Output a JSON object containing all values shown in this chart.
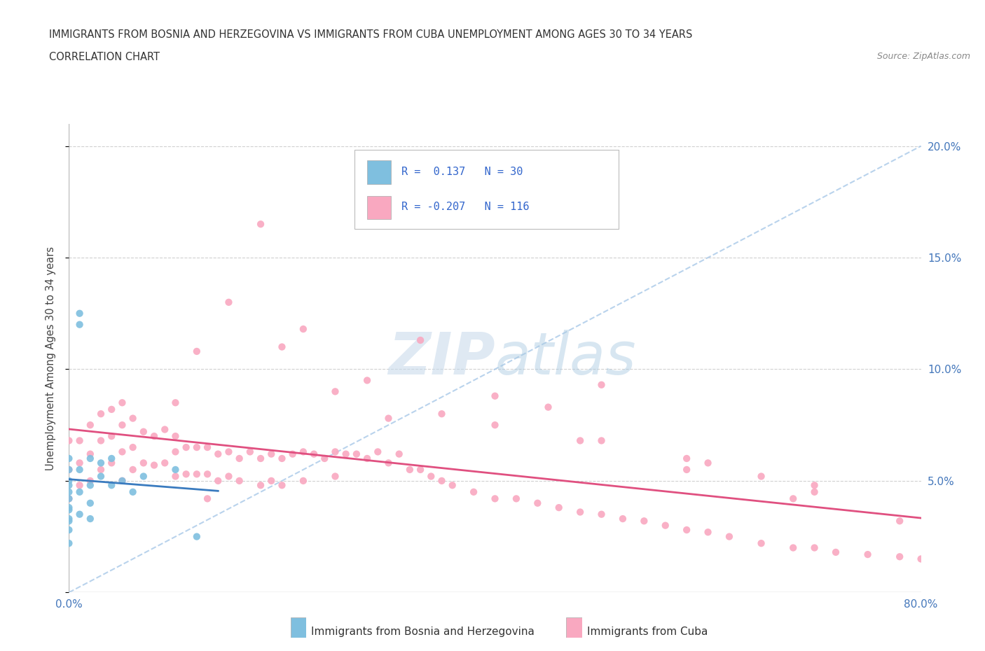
{
  "title_line1": "IMMIGRANTS FROM BOSNIA AND HERZEGOVINA VS IMMIGRANTS FROM CUBA UNEMPLOYMENT AMONG AGES 30 TO 34 YEARS",
  "title_line2": "CORRELATION CHART",
  "source_text": "Source: ZipAtlas.com",
  "ylabel": "Unemployment Among Ages 30 to 34 years",
  "xlim": [
    0.0,
    0.8
  ],
  "ylim": [
    0.0,
    0.21
  ],
  "x_ticks": [
    0.0,
    0.1,
    0.2,
    0.3,
    0.4,
    0.5,
    0.6,
    0.7,
    0.8
  ],
  "y_ticks": [
    0.0,
    0.05,
    0.1,
    0.15,
    0.2
  ],
  "y_tick_labels_right": [
    "",
    "5.0%",
    "10.0%",
    "15.0%",
    "20.0%"
  ],
  "bosnia_color": "#7fbfdf",
  "cuba_color": "#f9a8c0",
  "bosnia_line_color": "#3a7bbf",
  "cuba_line_color": "#e05080",
  "watermark_color": "#d0e4f0",
  "bosnia_x": [
    0.0,
    0.0,
    0.0,
    0.0,
    0.0,
    0.0,
    0.0,
    0.0,
    0.0,
    0.0,
    0.0,
    0.0,
    0.01,
    0.01,
    0.01,
    0.01,
    0.01,
    0.02,
    0.02,
    0.02,
    0.02,
    0.03,
    0.03,
    0.04,
    0.04,
    0.05,
    0.06,
    0.07,
    0.1,
    0.12
  ],
  "bosnia_y": [
    0.055,
    0.06,
    0.048,
    0.042,
    0.037,
    0.032,
    0.045,
    0.05,
    0.038,
    0.033,
    0.028,
    0.022,
    0.12,
    0.125,
    0.055,
    0.045,
    0.035,
    0.06,
    0.048,
    0.04,
    0.033,
    0.058,
    0.052,
    0.06,
    0.048,
    0.05,
    0.045,
    0.052,
    0.055,
    0.025
  ],
  "cuba_x": [
    0.0,
    0.0,
    0.0,
    0.01,
    0.01,
    0.01,
    0.02,
    0.02,
    0.02,
    0.03,
    0.03,
    0.03,
    0.04,
    0.04,
    0.04,
    0.05,
    0.05,
    0.05,
    0.05,
    0.06,
    0.06,
    0.06,
    0.07,
    0.07,
    0.08,
    0.08,
    0.09,
    0.09,
    0.1,
    0.1,
    0.1,
    0.11,
    0.11,
    0.12,
    0.12,
    0.13,
    0.13,
    0.13,
    0.14,
    0.14,
    0.15,
    0.15,
    0.16,
    0.16,
    0.17,
    0.18,
    0.18,
    0.19,
    0.19,
    0.2,
    0.2,
    0.21,
    0.22,
    0.22,
    0.23,
    0.24,
    0.25,
    0.25,
    0.26,
    0.27,
    0.28,
    0.29,
    0.3,
    0.31,
    0.32,
    0.33,
    0.34,
    0.35,
    0.36,
    0.38,
    0.4,
    0.42,
    0.44,
    0.46,
    0.48,
    0.5,
    0.52,
    0.54,
    0.56,
    0.58,
    0.6,
    0.62,
    0.65,
    0.68,
    0.7,
    0.72,
    0.75,
    0.78,
    0.8,
    0.15,
    0.18,
    0.22,
    0.28,
    0.33,
    0.4,
    0.45,
    0.5,
    0.58,
    0.65,
    0.7,
    0.1,
    0.2,
    0.3,
    0.4,
    0.5,
    0.6,
    0.7,
    0.12,
    0.25,
    0.35,
    0.48,
    0.58,
    0.68,
    0.78
  ],
  "cuba_y": [
    0.068,
    0.055,
    0.042,
    0.068,
    0.058,
    0.048,
    0.075,
    0.062,
    0.05,
    0.08,
    0.068,
    0.055,
    0.082,
    0.07,
    0.058,
    0.085,
    0.075,
    0.063,
    0.05,
    0.078,
    0.065,
    0.055,
    0.072,
    0.058,
    0.07,
    0.057,
    0.073,
    0.058,
    0.07,
    0.063,
    0.052,
    0.065,
    0.053,
    0.065,
    0.053,
    0.065,
    0.053,
    0.042,
    0.062,
    0.05,
    0.063,
    0.052,
    0.06,
    0.05,
    0.063,
    0.06,
    0.048,
    0.062,
    0.05,
    0.06,
    0.048,
    0.062,
    0.063,
    0.05,
    0.062,
    0.06,
    0.063,
    0.052,
    0.062,
    0.062,
    0.06,
    0.063,
    0.058,
    0.062,
    0.055,
    0.055,
    0.052,
    0.05,
    0.048,
    0.045,
    0.042,
    0.042,
    0.04,
    0.038,
    0.036,
    0.035,
    0.033,
    0.032,
    0.03,
    0.028,
    0.027,
    0.025,
    0.022,
    0.02,
    0.02,
    0.018,
    0.017,
    0.016,
    0.015,
    0.13,
    0.165,
    0.118,
    0.095,
    0.113,
    0.088,
    0.083,
    0.093,
    0.055,
    0.052,
    0.048,
    0.085,
    0.11,
    0.078,
    0.075,
    0.068,
    0.058,
    0.045,
    0.108,
    0.09,
    0.08,
    0.068,
    0.06,
    0.042,
    0.032
  ]
}
